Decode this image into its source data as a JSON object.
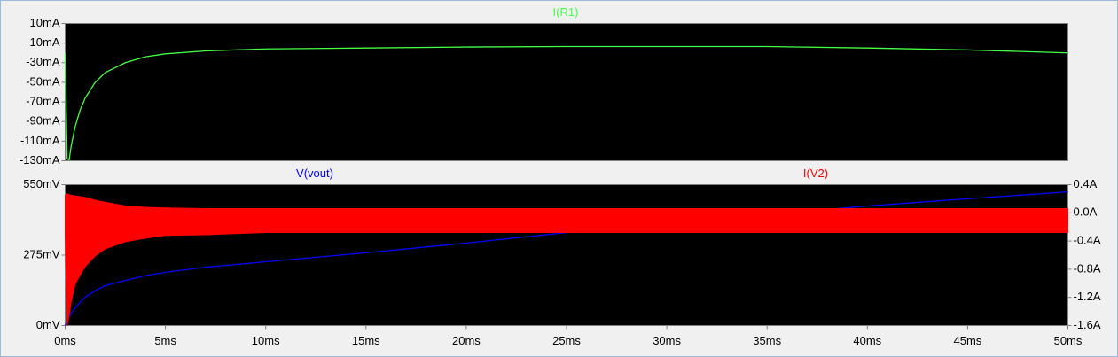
{
  "chart_data": [
    {
      "type": "line",
      "x": [
        0,
        0.1,
        0.2,
        0.3,
        0.5,
        0.75,
        1,
        1.5,
        2,
        3,
        4,
        5,
        7,
        10,
        15,
        20,
        25,
        30,
        35,
        40,
        45,
        50
      ],
      "xlim": [
        0,
        50
      ],
      "ylim": [
        -130,
        10
      ],
      "yticks": [
        {
          "value": 10,
          "label": "10mA"
        },
        {
          "value": -10,
          "label": "-10mA"
        },
        {
          "value": -30,
          "label": "-30mA"
        },
        {
          "value": -50,
          "label": "-50mA"
        },
        {
          "value": -70,
          "label": "-70mA"
        },
        {
          "value": -90,
          "label": "-90mA"
        },
        {
          "value": -110,
          "label": "-110mA"
        },
        {
          "value": -130,
          "label": "-130mA"
        }
      ],
      "series": [
        {
          "name": "I(R1)",
          "color": "#44ff44",
          "values": [
            -20,
            -128,
            -129,
            -115,
            -95,
            -78,
            -66,
            -50,
            -40,
            -30,
            -24,
            -21,
            -18,
            -16,
            -15,
            -14,
            -13.5,
            -13.5,
            -13.5,
            -15,
            -17,
            -20
          ]
        }
      ]
    },
    {
      "type": "line",
      "x": [
        0,
        0.1,
        0.2,
        0.3,
        0.5,
        0.75,
        1,
        1.5,
        2,
        3,
        4,
        5,
        7,
        10,
        15,
        20,
        25,
        30,
        35,
        40,
        45,
        50
      ],
      "xlim": [
        0,
        50
      ],
      "xticks": [
        {
          "value": 0,
          "label": "0ms"
        },
        {
          "value": 5,
          "label": "5ms"
        },
        {
          "value": 10,
          "label": "10ms"
        },
        {
          "value": 15,
          "label": "15ms"
        },
        {
          "value": 20,
          "label": "20ms"
        },
        {
          "value": 25,
          "label": "25ms"
        },
        {
          "value": 30,
          "label": "30ms"
        },
        {
          "value": 35,
          "label": "35ms"
        },
        {
          "value": 40,
          "label": "40ms"
        },
        {
          "value": 45,
          "label": "45ms"
        },
        {
          "value": 50,
          "label": "50ms"
        }
      ],
      "ylim": [
        0,
        550
      ],
      "yticks": [
        {
          "value": 0,
          "label": "0mV"
        },
        {
          "value": 275,
          "label": "275mV"
        },
        {
          "value": 550,
          "label": "550mV"
        }
      ],
      "y2lim": [
        -1.6,
        0.4
      ],
      "y2ticks": [
        {
          "value": 0.4,
          "label": "0.4A"
        },
        {
          "value": 0,
          "label": "0.0A"
        },
        {
          "value": -0.4,
          "label": "-0.4A"
        },
        {
          "value": -0.8,
          "label": "-0.8A"
        },
        {
          "value": -1.2,
          "label": "-1.2A"
        },
        {
          "value": -1.6,
          "label": "-1.6A"
        }
      ],
      "series": [
        {
          "name": "V(vout)",
          "color": "#0000ff",
          "values": [
            0,
            20,
            35,
            48,
            69,
            92,
            111,
            136,
            156,
            176,
            195,
            208,
            228,
            249,
            284,
            322,
            363,
            398,
            432,
            467,
            495,
            522
          ]
        },
        {
          "name": "I(V2)",
          "color": "#ff0000",
          "axis": "y2",
          "values": [
            0.25,
            0.27,
            0.26,
            0.25,
            0.24,
            0.23,
            0.22,
            0.18,
            0.15,
            0.1,
            0.08,
            0.07,
            0.06,
            0.06,
            0.06,
            0.06,
            0.06,
            0.06,
            0.06,
            0.06,
            0.06,
            0.06
          ],
          "low": [
            -0.3,
            -1.6,
            -1.45,
            -1.26,
            -1.01,
            -0.88,
            -0.76,
            -0.61,
            -0.51,
            -0.41,
            -0.36,
            -0.32,
            -0.31,
            -0.28,
            -0.28,
            -0.28,
            -0.28,
            -0.28,
            -0.28,
            -0.28,
            -0.28,
            -0.28
          ]
        }
      ]
    }
  ]
}
